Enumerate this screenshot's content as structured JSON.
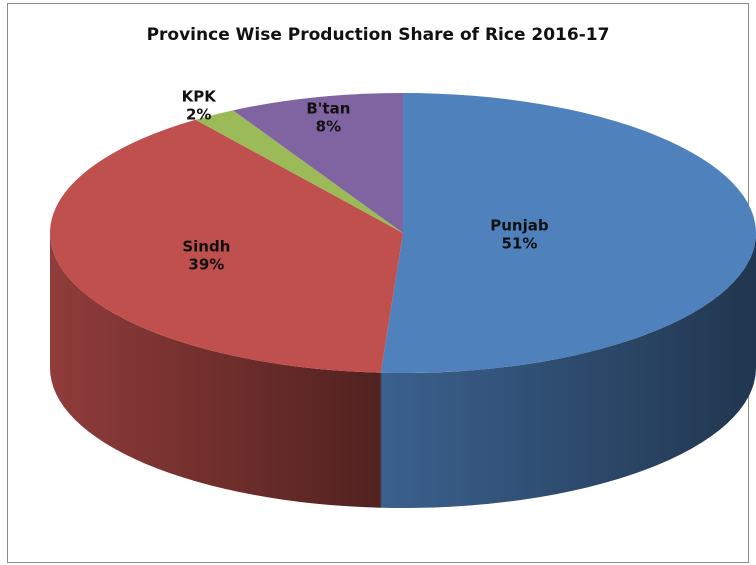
{
  "chart_data": {
    "type": "pie",
    "title": "Province Wise Production Share of Rice 2016-17",
    "slices": [
      {
        "label": "Punjab",
        "value": 51,
        "pct_label": "51%",
        "color": "#4f81bd"
      },
      {
        "label": "Sindh",
        "value": 39,
        "pct_label": "39%",
        "color": "#c0504d"
      },
      {
        "label": "KPK",
        "value": 2,
        "pct_label": "2%",
        "color": "#9bbb59"
      },
      {
        "label": "B'tan",
        "value": 8,
        "pct_label": "8%",
        "color": "#8064a2"
      }
    ],
    "style": "3d",
    "legend": "none"
  }
}
